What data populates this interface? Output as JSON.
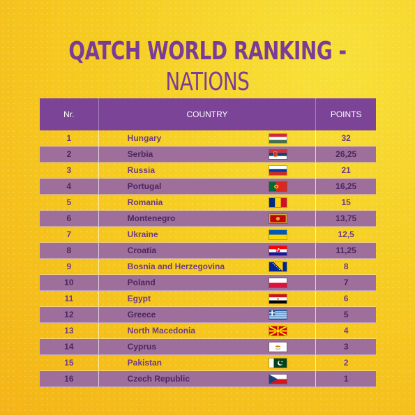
{
  "title": {
    "bold": "QATCH WORLD RANKING -",
    "light": "NATIONS"
  },
  "header": {
    "nr": "Nr.",
    "country": "COUNTRY",
    "points": "POINTS"
  },
  "rows": [
    {
      "nr": "1",
      "country": "Hungary",
      "points": "32",
      "flag": "hungary-flag-icon"
    },
    {
      "nr": "2",
      "country": "Serbia",
      "points": "26,25",
      "flag": "serbia-flag-icon"
    },
    {
      "nr": "3",
      "country": "Russia",
      "points": "21",
      "flag": "russia-flag-icon"
    },
    {
      "nr": "4",
      "country": "Portugal",
      "points": "16,25",
      "flag": "portugal-flag-icon"
    },
    {
      "nr": "5",
      "country": "Romania",
      "points": "15",
      "flag": "romania-flag-icon"
    },
    {
      "nr": "6",
      "country": "Montenegro",
      "points": "13,75",
      "flag": "montenegro-flag-icon"
    },
    {
      "nr": "7",
      "country": "Ukraine",
      "points": "12,5",
      "flag": "ukraine-flag-icon"
    },
    {
      "nr": "8",
      "country": "Croatia",
      "points": "11,25",
      "flag": "croatia-flag-icon"
    },
    {
      "nr": "9",
      "country": "Bosnia and Herzegovina",
      "points": "8",
      "flag": "bosnia-flag-icon"
    },
    {
      "nr": "10",
      "country": "Poland",
      "points": "7",
      "flag": "poland-flag-icon"
    },
    {
      "nr": "11",
      "country": "Egypt",
      "points": "6",
      "flag": "egypt-flag-icon"
    },
    {
      "nr": "12",
      "country": "Greece",
      "points": "5",
      "flag": "greece-flag-icon"
    },
    {
      "nr": "13",
      "country": "North Macedonia",
      "points": "4",
      "flag": "north-macedonia-flag-icon"
    },
    {
      "nr": "14",
      "country": "Cyprus",
      "points": "3",
      "flag": "cyprus-flag-icon"
    },
    {
      "nr": "15",
      "country": "Pakistan",
      "points": "2",
      "flag": "pakistan-flag-icon"
    },
    {
      "nr": "16",
      "country": "Czech Republic",
      "points": "1",
      "flag": "czech-flag-icon"
    }
  ],
  "colors": {
    "purple": "#7b4497",
    "stripe": "#9d6f9a",
    "text": "#6b3a86"
  }
}
